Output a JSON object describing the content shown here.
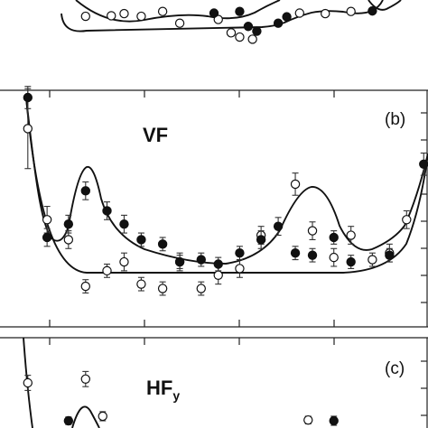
{
  "chart_data": [
    {
      "type": "scatter",
      "panel": "a",
      "panel_label": "",
      "title": "",
      "xlim": [
        0,
        1
      ],
      "ylim": [
        0,
        1
      ],
      "series": [
        {
          "kind": "open-circles",
          "marker": "open",
          "points": [
            [
              0.2,
              0.83,
              0.03
            ],
            [
              0.26,
              0.84,
              0.03
            ],
            [
              0.29,
              0.88,
              0.03
            ],
            [
              0.33,
              0.83,
              0.03
            ],
            [
              0.38,
              0.92,
              0.03
            ],
            [
              0.42,
              0.7,
              0.04
            ],
            [
              0.51,
              0.77,
              0.03
            ],
            [
              0.54,
              0.52,
              0.05
            ],
            [
              0.56,
              0.44,
              0.04
            ],
            [
              0.59,
              0.4,
              0.04
            ],
            [
              0.7,
              0.89,
              0.03
            ],
            [
              0.76,
              0.88,
              0.03
            ],
            [
              0.82,
              0.92,
              0.03
            ]
          ]
        },
        {
          "kind": "filled-circles",
          "marker": "filled",
          "points": [
            [
              0.5,
              0.89,
              0.03
            ],
            [
              0.56,
              0.92,
              0.03
            ],
            [
              0.58,
              0.64,
              0.04
            ],
            [
              0.6,
              0.55,
              0.04
            ],
            [
              0.65,
              0.7,
              0.04
            ],
            [
              0.67,
              0.82,
              0.03
            ],
            [
              0.87,
              0.93,
              0.03
            ]
          ]
        }
      ]
    },
    {
      "type": "scatter",
      "panel": "b",
      "panel_label": "(b)",
      "title": "VF",
      "xlim": [
        0,
        1
      ],
      "ylim": [
        0,
        1
      ],
      "series": [
        {
          "kind": "open-circles",
          "marker": "open",
          "points": [
            [
              0.065,
              0.86,
              0.18
            ],
            [
              0.11,
              0.45,
              0.06
            ],
            [
              0.16,
              0.36,
              0.04
            ],
            [
              0.2,
              0.15,
              0.03
            ],
            [
              0.25,
              0.22,
              0.03
            ],
            [
              0.29,
              0.26,
              0.04
            ],
            [
              0.33,
              0.16,
              0.03
            ],
            [
              0.38,
              0.14,
              0.03
            ],
            [
              0.42,
              0.26,
              0.04
            ],
            [
              0.47,
              0.14,
              0.03
            ],
            [
              0.51,
              0.2,
              0.04
            ],
            [
              0.56,
              0.23,
              0.04
            ],
            [
              0.61,
              0.38,
              0.04
            ],
            [
              0.69,
              0.61,
              0.05
            ],
            [
              0.73,
              0.4,
              0.04
            ],
            [
              0.78,
              0.28,
              0.04
            ],
            [
              0.82,
              0.38,
              0.04
            ],
            [
              0.87,
              0.27,
              0.03
            ],
            [
              0.91,
              0.3,
              0.04
            ],
            [
              0.95,
              0.45,
              0.04
            ]
          ]
        },
        {
          "kind": "filled-circles",
          "marker": "filled",
          "points": [
            [
              0.065,
              1.0,
              0.05
            ],
            [
              0.11,
              0.37,
              0.04
            ],
            [
              0.16,
              0.43,
              0.04
            ],
            [
              0.2,
              0.58,
              0.04
            ],
            [
              0.25,
              0.49,
              0.04
            ],
            [
              0.29,
              0.43,
              0.04
            ],
            [
              0.33,
              0.36,
              0.03
            ],
            [
              0.38,
              0.34,
              0.03
            ],
            [
              0.42,
              0.26,
              0.03
            ],
            [
              0.47,
              0.27,
              0.03
            ],
            [
              0.51,
              0.25,
              0.03
            ],
            [
              0.56,
              0.3,
              0.03
            ],
            [
              0.61,
              0.36,
              0.04
            ],
            [
              0.65,
              0.42,
              0.04
            ],
            [
              0.69,
              0.3,
              0.03
            ],
            [
              0.73,
              0.29,
              0.03
            ],
            [
              0.78,
              0.37,
              0.03
            ],
            [
              0.82,
              0.26,
              0.03
            ],
            [
              0.91,
              0.29,
              0.03
            ],
            [
              0.99,
              0.7,
              0.05
            ]
          ]
        }
      ]
    },
    {
      "type": "scatter",
      "panel": "c",
      "panel_label": "(c)",
      "title": "HF",
      "title_subscript": "y",
      "xlim": [
        0,
        1
      ],
      "ylim": [
        0,
        1
      ],
      "series": [
        {
          "kind": "open-circles",
          "marker": "open",
          "points": [
            [
              0.065,
              0.5,
              0.1
            ],
            [
              0.2,
              0.55,
              0.1
            ],
            [
              0.24,
              0.06,
              0.06
            ],
            [
              0.72,
              0.01,
              0.05
            ]
          ]
        },
        {
          "kind": "filled-circles",
          "marker": "filled",
          "points": [
            [
              0.16,
              0.0,
              0.05
            ],
            [
              0.78,
              0.0,
              0.06
            ]
          ]
        }
      ]
    }
  ]
}
